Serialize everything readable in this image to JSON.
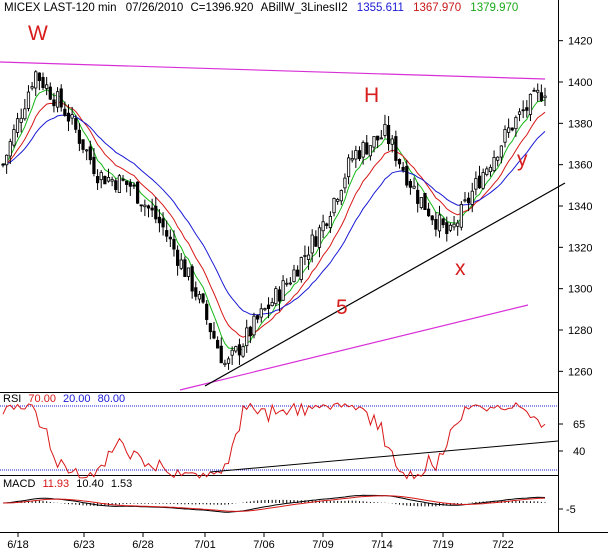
{
  "header": {
    "symbol": "MICEX LAST-120 min",
    "date": "07/26/2010",
    "close_label": "C=1396.920",
    "study_name": "ABillW_3LinesII2",
    "study_values": [
      {
        "value": "1355.611",
        "color": "#1a1ad6"
      },
      {
        "value": "1367.970",
        "color": "#c81818"
      },
      {
        "value": "1379.970",
        "color": "#18a818"
      }
    ]
  },
  "rsi": {
    "label": "RSI",
    "params": [
      {
        "value": "70.00",
        "color": "#d81818"
      },
      {
        "value": "20.00",
        "color": "#1a1ad6"
      },
      {
        "value": "80.00",
        "color": "#1a1ad6"
      }
    ],
    "levels": [
      70,
      40
    ],
    "ticks": [
      "65",
      "40"
    ]
  },
  "macd": {
    "label": "MACD",
    "params": [
      {
        "value": "11.93",
        "color": "#d81818"
      },
      {
        "value": "10.40",
        "color": "#000000"
      },
      {
        "value": "1.53",
        "color": "#000000"
      }
    ],
    "ticks": [
      "-5"
    ]
  },
  "annotations": {
    "w": "W",
    "h": "H",
    "five": "5",
    "x": "x",
    "y": "y"
  },
  "colors": {
    "up": "#000000",
    "down": "#000000",
    "ma_fast": "#18b818",
    "ma_mid": "#d81818",
    "ma_slow": "#1a1ad6",
    "trend_magenta": "#d830d8",
    "trend_black": "#000000"
  },
  "chart_data": {
    "type": "candlestick",
    "title": "MICEX LAST-120 min",
    "x_ticks": [
      "6/18",
      "6/23",
      "6/28",
      "7/01",
      "7/06",
      "7/09",
      "7/14",
      "7/19",
      "7/22"
    ],
    "y_ticks": [
      1260,
      1280,
      1300,
      1320,
      1340,
      1360,
      1380,
      1400,
      1420
    ],
    "ylim": [
      1250,
      1430
    ],
    "price_path": [
      {
        "x": "6/18",
        "close": 1360
      },
      {
        "x": "6/21",
        "close": 1405
      },
      {
        "x": "6/23",
        "close": 1385
      },
      {
        "x": "6/25",
        "close": 1355
      },
      {
        "x": "6/28",
        "close": 1350
      },
      {
        "x": "6/29",
        "close": 1330
      },
      {
        "x": "6/30",
        "close": 1300
      },
      {
        "x": "7/01",
        "close": 1262
      },
      {
        "x": "7/02",
        "close": 1285
      },
      {
        "x": "7/06",
        "close": 1305
      },
      {
        "x": "7/08",
        "close": 1330
      },
      {
        "x": "7/12",
        "close": 1365
      },
      {
        "x": "7/14",
        "close": 1375
      },
      {
        "x": "7/16",
        "close": 1345
      },
      {
        "x": "7/19",
        "close": 1325
      },
      {
        "x": "7/20",
        "close": 1355
      },
      {
        "x": "7/22",
        "close": 1380
      },
      {
        "x": "7/26",
        "close": 1397
      }
    ],
    "moving_averages": [
      {
        "name": "1379.970",
        "color": "#18a818"
      },
      {
        "name": "1367.970",
        "color": "#c81818"
      },
      {
        "name": "1355.611",
        "color": "#1a1ad6"
      }
    ],
    "rsi_levels": [
      70,
      40
    ],
    "grid": false
  }
}
